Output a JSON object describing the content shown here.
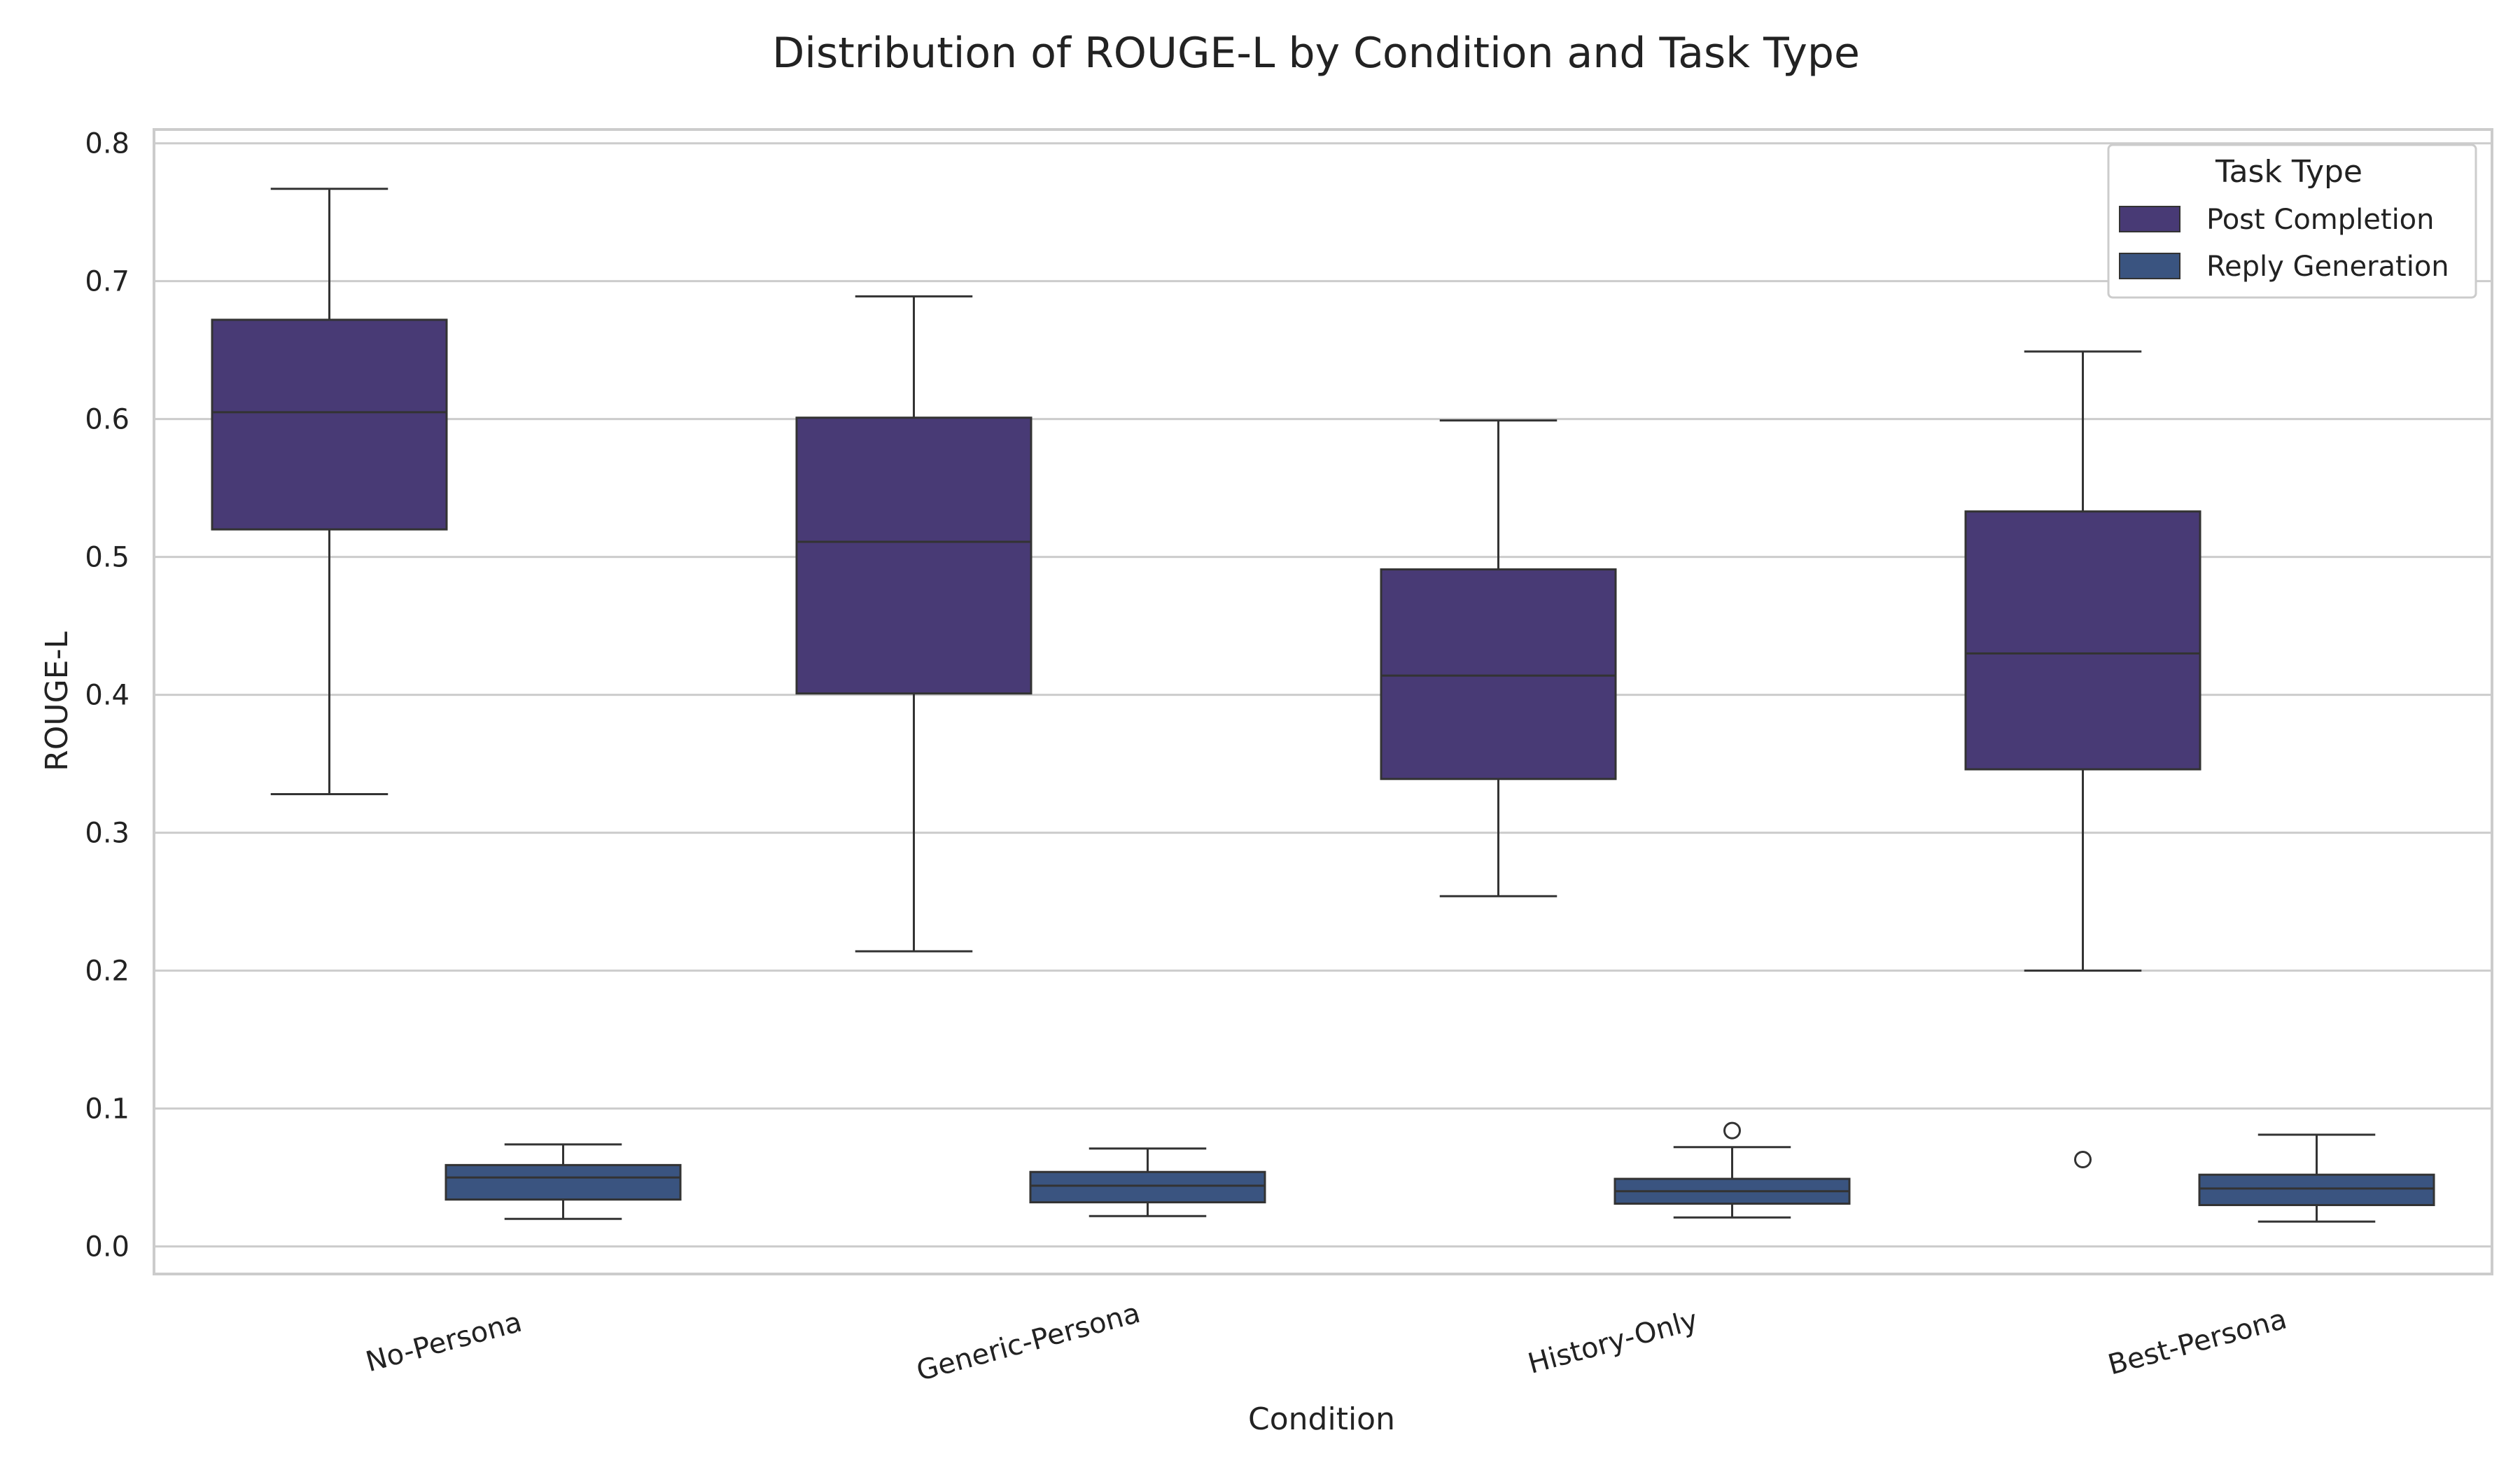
{
  "chart_data": {
    "type": "box",
    "title": "Distribution of ROUGE-L by Condition and Task Type",
    "xlabel": "Condition",
    "ylabel": "ROUGE-L",
    "ylim": [
      -0.02,
      0.81
    ],
    "yticks": [
      0.0,
      0.1,
      0.2,
      0.3,
      0.4,
      0.5,
      0.6,
      0.7,
      0.8
    ],
    "ytick_labels": [
      "0.0",
      "0.1",
      "0.2",
      "0.3",
      "0.4",
      "0.5",
      "0.6",
      "0.7",
      "0.8"
    ],
    "grid": "horizontal",
    "legend": {
      "title": "Task Type",
      "placement": "top-right"
    },
    "categories": [
      "No-Persona",
      "Generic-Persona",
      "History-Only",
      "Best-Persona"
    ],
    "series": [
      {
        "name": "Post Completion",
        "color": "#483a75",
        "boxes": [
          {
            "whisker_low": 0.328,
            "q1": 0.52,
            "median": 0.605,
            "q3": 0.672,
            "whisker_high": 0.767,
            "outliers": []
          },
          {
            "whisker_low": 0.214,
            "q1": 0.401,
            "median": 0.511,
            "q3": 0.601,
            "whisker_high": 0.689,
            "outliers": []
          },
          {
            "whisker_low": 0.254,
            "q1": 0.339,
            "median": 0.414,
            "q3": 0.491,
            "whisker_high": 0.599,
            "outliers": []
          },
          {
            "whisker_low": 0.2,
            "q1": 0.346,
            "median": 0.43,
            "q3": 0.533,
            "whisker_high": 0.649,
            "outliers": [
              0.063
            ]
          }
        ]
      },
      {
        "name": "Reply Generation",
        "color": "#3a5480",
        "boxes": [
          {
            "whisker_low": 0.02,
            "q1": 0.034,
            "median": 0.05,
            "q3": 0.059,
            "whisker_high": 0.074,
            "outliers": []
          },
          {
            "whisker_low": 0.022,
            "q1": 0.032,
            "median": 0.044,
            "q3": 0.054,
            "whisker_high": 0.071,
            "outliers": []
          },
          {
            "whisker_low": 0.021,
            "q1": 0.031,
            "median": 0.04,
            "q3": 0.049,
            "whisker_high": 0.072,
            "outliers": [
              0.084
            ]
          },
          {
            "whisker_low": 0.018,
            "q1": 0.03,
            "median": 0.042,
            "q3": 0.052,
            "whisker_high": 0.081,
            "outliers": []
          }
        ]
      }
    ]
  }
}
